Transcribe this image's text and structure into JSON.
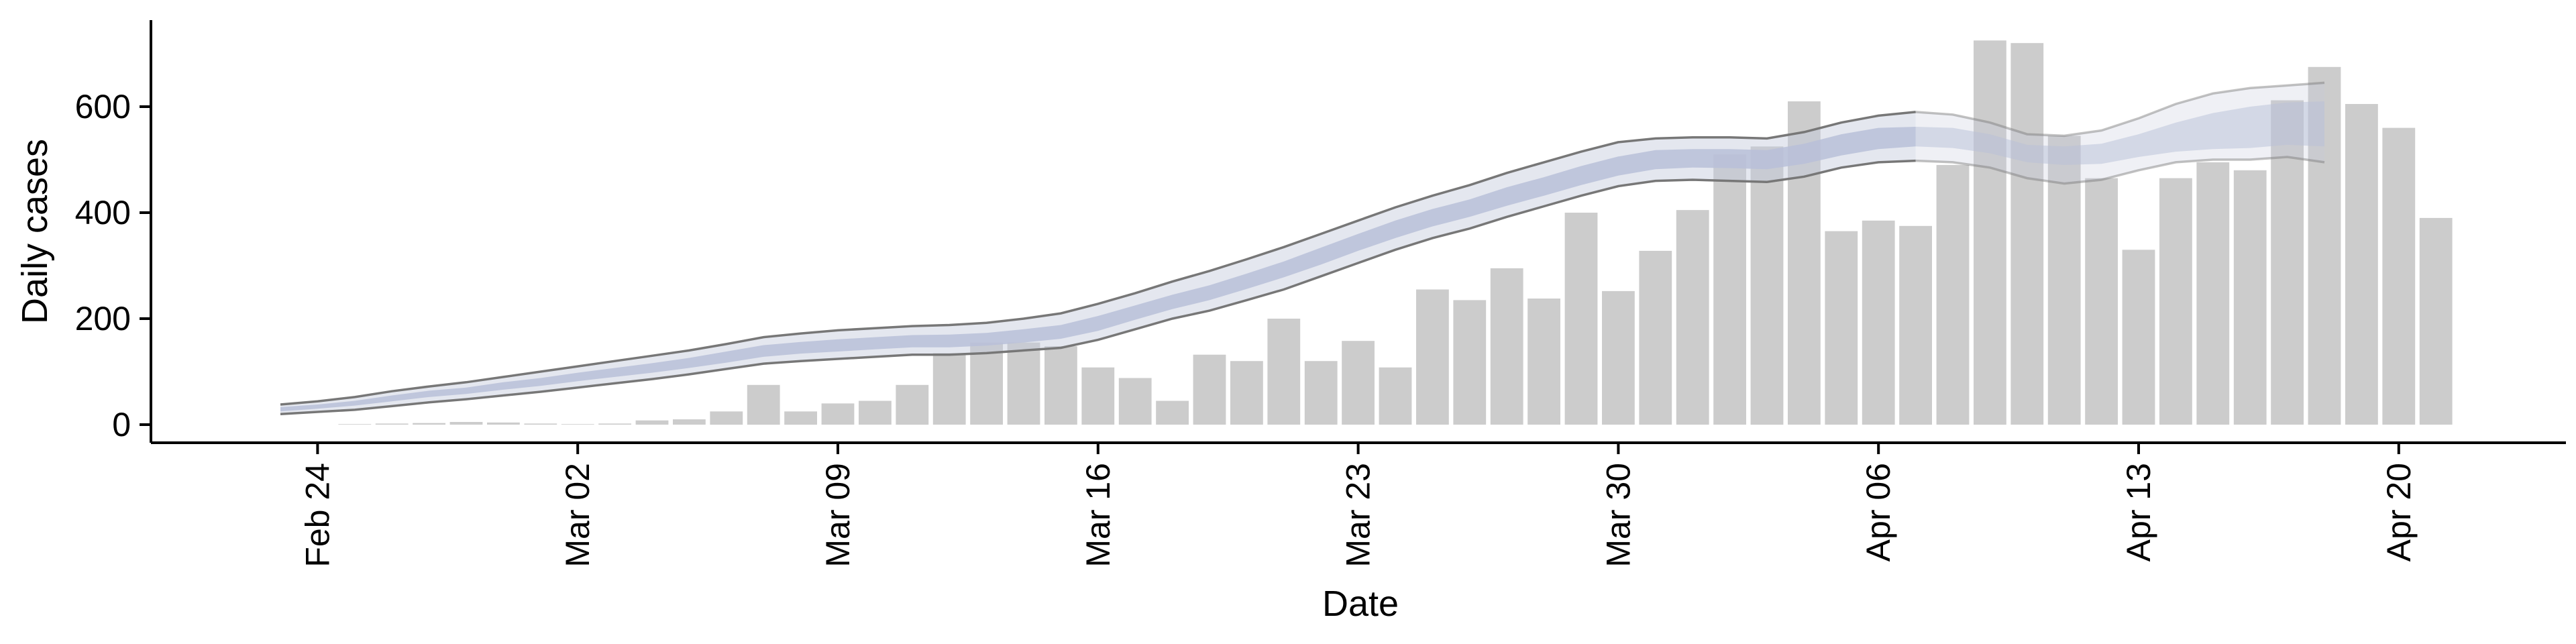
{
  "chart_data": {
    "type": "bar",
    "xlabel": "Date",
    "ylabel": "Daily cases",
    "ylim": [
      -30,
      760
    ],
    "grid": false,
    "legend": "none",
    "x_start": "2020-02-23",
    "x_ticks": [
      {
        "label": "Feb 24",
        "date": "2020-02-24"
      },
      {
        "label": "Mar 02",
        "date": "2020-03-02"
      },
      {
        "label": "Mar 09",
        "date": "2020-03-09"
      },
      {
        "label": "Mar 16",
        "date": "2020-03-16"
      },
      {
        "label": "Mar 23",
        "date": "2020-03-23"
      },
      {
        "label": "Mar 30",
        "date": "2020-03-30"
      },
      {
        "label": "Apr 06",
        "date": "2020-04-06"
      },
      {
        "label": "Apr 13",
        "date": "2020-04-13"
      },
      {
        "label": "Apr 20",
        "date": "2020-04-20"
      }
    ],
    "y_ticks": [
      0,
      200,
      400,
      600
    ],
    "colors": {
      "bars": "#cccccc",
      "band_outer": "#c4c9db",
      "band_inner": "#b8c0d8",
      "band_lines": "#777777"
    },
    "series": [
      {
        "type": "bar",
        "start": "2020-02-25",
        "values": [
          1,
          2,
          3,
          5,
          4,
          2,
          1,
          2,
          8,
          10,
          25,
          75,
          25,
          40,
          45,
          75,
          135,
          155,
          155,
          148,
          108,
          88,
          45,
          132,
          120,
          200,
          120,
          158,
          108,
          255,
          235,
          295,
          238,
          400,
          252,
          328,
          405,
          510,
          525,
          610,
          365,
          385,
          375,
          490,
          725,
          720,
          545,
          465,
          330,
          465,
          495,
          480,
          612,
          675,
          605,
          560,
          390
        ]
      },
      {
        "type": "band",
        "start": "2020-02-23",
        "lower_outer": [
          20,
          24,
          28,
          35,
          42,
          48,
          55,
          62,
          70,
          78,
          86,
          95,
          105,
          115,
          120,
          124,
          128,
          132,
          132,
          135,
          140,
          145,
          160,
          180,
          200,
          215,
          235,
          255,
          280,
          305,
          330,
          352,
          370,
          392,
          412,
          432,
          450,
          460,
          462,
          460,
          458,
          468,
          485,
          495,
          498,
          495,
          485,
          465,
          455,
          462,
          480,
          495,
          500,
          500,
          505,
          495
        ],
        "lower_inner": [
          25,
          30,
          36,
          44,
          52,
          58,
          66,
          73,
          82,
          90,
          98,
          107,
          117,
          128,
          134,
          138,
          142,
          146,
          146,
          149,
          155,
          162,
          177,
          198,
          218,
          235,
          256,
          278,
          302,
          328,
          352,
          374,
          392,
          413,
          432,
          452,
          470,
          482,
          485,
          484,
          482,
          492,
          508,
          520,
          525,
          522,
          512,
          495,
          490,
          492,
          505,
          515,
          520,
          522,
          528,
          525
        ],
        "upper_inner": [
          33,
          38,
          45,
          55,
          64,
          70,
          80,
          88,
          98,
          107,
          116,
          126,
          138,
          150,
          156,
          161,
          165,
          169,
          170,
          173,
          180,
          188,
          205,
          225,
          245,
          263,
          285,
          308,
          334,
          360,
          385,
          407,
          425,
          448,
          467,
          488,
          506,
          518,
          520,
          520,
          518,
          530,
          548,
          560,
          562,
          560,
          548,
          528,
          525,
          530,
          548,
          570,
          588,
          600,
          608,
          610
        ],
        "upper_outer": [
          38,
          44,
          52,
          63,
          72,
          80,
          90,
          100,
          110,
          120,
          130,
          140,
          152,
          165,
          172,
          178,
          182,
          186,
          188,
          192,
          200,
          210,
          228,
          248,
          270,
          290,
          312,
          335,
          360,
          385,
          410,
          432,
          452,
          475,
          495,
          515,
          533,
          540,
          542,
          542,
          540,
          552,
          570,
          583,
          590,
          585,
          570,
          548,
          545,
          555,
          578,
          605,
          625,
          635,
          640,
          645
        ],
        "solid_until": "2020-04-07"
      }
    ]
  }
}
